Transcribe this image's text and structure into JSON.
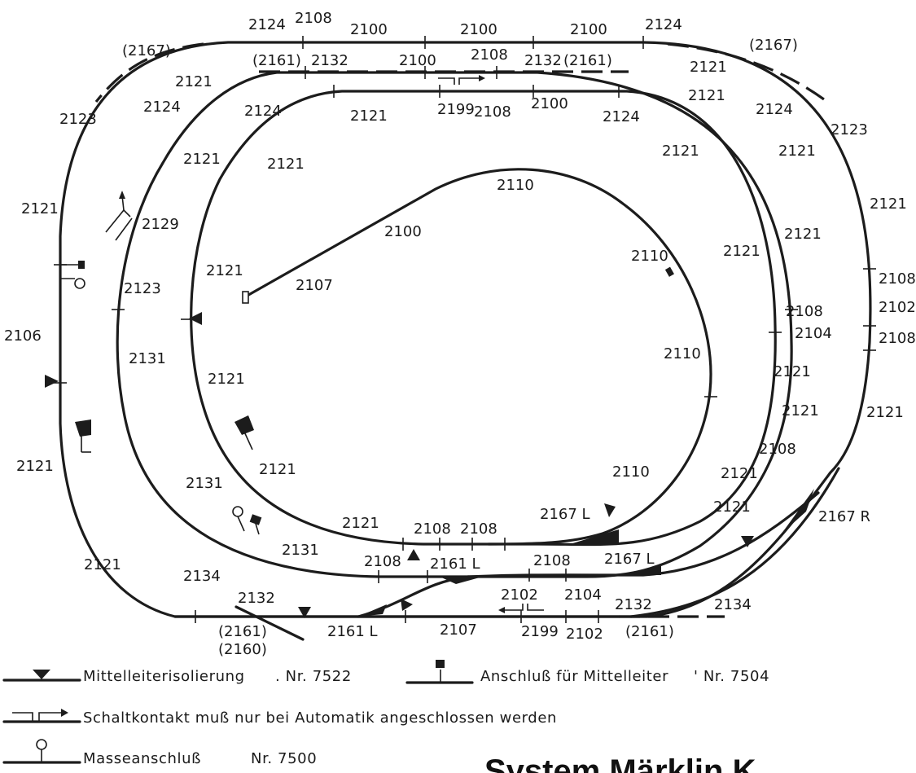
{
  "track_labels": {
    "outer_top": [
      "2124",
      "2108",
      "2100",
      "2100",
      "2100",
      "2124",
      "(2167)",
      "(2167)"
    ],
    "outer_sides": [
      "2121",
      "2123",
      "2121",
      "2106",
      "2121",
      "2121",
      "2134",
      "2132",
      "2123",
      "2121",
      "2108",
      "2102",
      "2108",
      "2121",
      "2134"
    ],
    "second_top": [
      "(2161)",
      "2132",
      "2100",
      "2108",
      "2132",
      "(2161)",
      "2121",
      "2121",
      "2124",
      "2124"
    ],
    "second_sides": [
      "2121",
      "2124",
      "2121",
      "2129",
      "2123",
      "2131",
      "2131",
      "2131",
      "2121",
      "2121",
      "2121",
      "2108",
      "2104",
      "2121",
      "2121",
      "2108",
      "2121",
      "2121"
    ],
    "third_labels": [
      "2124",
      "2121",
      "2199",
      "2108",
      "2100",
      "2124",
      "2121",
      "2121",
      "2121",
      "2121",
      "2121",
      "2121",
      "2121"
    ],
    "bottom_labels": [
      "2108",
      "2108",
      "2108",
      "2161 L",
      "2108",
      "2167 L",
      "2167 L",
      "2167 R",
      "2102",
      "2104",
      "2161 L",
      "2107",
      "2199",
      "2102",
      "2132",
      "(2161)",
      "(2161)",
      "(2160)"
    ],
    "inner_labels": [
      "2110",
      "2100",
      "2107",
      "2110",
      "2110",
      "2110"
    ]
  },
  "legend": {
    "isolation": "Mittelleiterisolierung",
    "isolation_nr": ". Nr. 7522",
    "connector": "Anschluß für Mittelleiter",
    "connector_nr": "' Nr.  7504",
    "contact": "Schaltkontakt  muß  nur bei  Automatik  angeschlossen werden",
    "ground": "Masseanschluß",
    "ground_nr": "Nr.  7500"
  },
  "brand": "System Märklin K"
}
